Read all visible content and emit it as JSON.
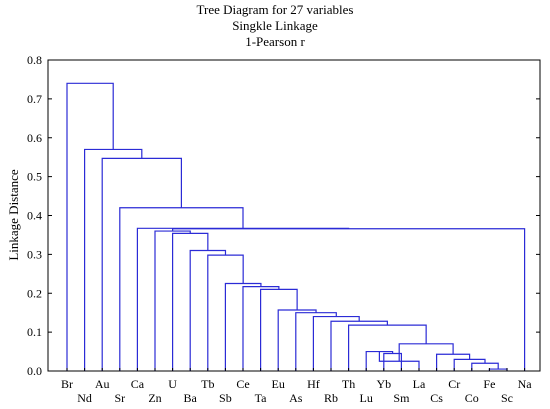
{
  "chart_data": {
    "type": "dendrogram",
    "title": "Tree Diagram for 27 variables",
    "subtitle_lines": [
      "Singkle Linkage",
      "1-Pearson r"
    ],
    "xlabel": "",
    "ylabel": "Linkage Distance",
    "ylim": [
      0,
      0.8
    ],
    "y_ticks": [
      "0.0",
      "0.1",
      "0.2",
      "0.3",
      "0.4",
      "0.5",
      "0.6",
      "0.7",
      "0.8"
    ],
    "leaves": [
      "Br",
      "Nd",
      "Au",
      "Sr",
      "Ca",
      "Zn",
      "U",
      "Ba",
      "Tb",
      "Sb",
      "Ce",
      "Ta",
      "Eu",
      "As",
      "Hf",
      "Rb",
      "Th",
      "Lu",
      "Yb",
      "Sm",
      "La",
      "Cs",
      "Cr",
      "Co",
      "Fe",
      "Sc",
      "Na"
    ],
    "links": [
      {
        "a": "Fe",
        "b": "Sc",
        "height": 0.005
      },
      {
        "a": "Co",
        "b": "Fe+Sc",
        "height": 0.02
      },
      {
        "a": "Cr",
        "b": "Co+Fe+Sc",
        "height": 0.03
      },
      {
        "a": "Cs",
        "b": "Cr+Co+Fe+Sc",
        "height": 0.043
      },
      {
        "a": "Yb",
        "b": "Sm",
        "height": 0.045
      },
      {
        "a": "Lu",
        "b": "Yb+Sm",
        "height": 0.05
      },
      {
        "a": "Lu+Yb+Sm",
        "b": "La",
        "height": 0.025
      },
      {
        "a": "Lu..La",
        "b": "Cs..Sc",
        "height": 0.07
      },
      {
        "a": "Th",
        "b": "Lu..Sc",
        "height": 0.118
      },
      {
        "a": "Rb",
        "b": "Th..Sc",
        "height": 0.128
      },
      {
        "a": "Hf",
        "b": "Rb..Sc",
        "height": 0.14
      },
      {
        "a": "As",
        "b": "Hf..Sc",
        "height": 0.15
      },
      {
        "a": "Eu",
        "b": "As..Sc",
        "height": 0.157
      },
      {
        "a": "Ta",
        "b": "Eu..Sc",
        "height": 0.21
      },
      {
        "a": "Ce",
        "b": "Ta..Sc",
        "height": 0.217
      },
      {
        "a": "Sb",
        "b": "Ce..Sc",
        "height": 0.225
      },
      {
        "a": "Tb",
        "b": "Sb..Sc",
        "height": 0.298
      },
      {
        "a": "Ba",
        "b": "Tb..Sc",
        "height": 0.31
      },
      {
        "a": "U",
        "b": "Ba..Sc",
        "height": 0.354
      },
      {
        "a": "Zn",
        "b": "U..Sc",
        "height": 0.36
      },
      {
        "a": "Zn..Sc",
        "b": "Na",
        "height": 0.366
      },
      {
        "a": "Ca",
        "b": "Zn..Na",
        "height": 0.367
      },
      {
        "a": "Sr",
        "b": "Ca..Na",
        "height": 0.42
      },
      {
        "a": "Au",
        "b": "Sr..Na",
        "height": 0.547
      },
      {
        "a": "Nd",
        "b": "Au..Na",
        "height": 0.57
      },
      {
        "a": "Br",
        "b": "Nd..Na",
        "height": 0.74
      }
    ],
    "grid": false,
    "line_color": "#2b2bd6"
  }
}
